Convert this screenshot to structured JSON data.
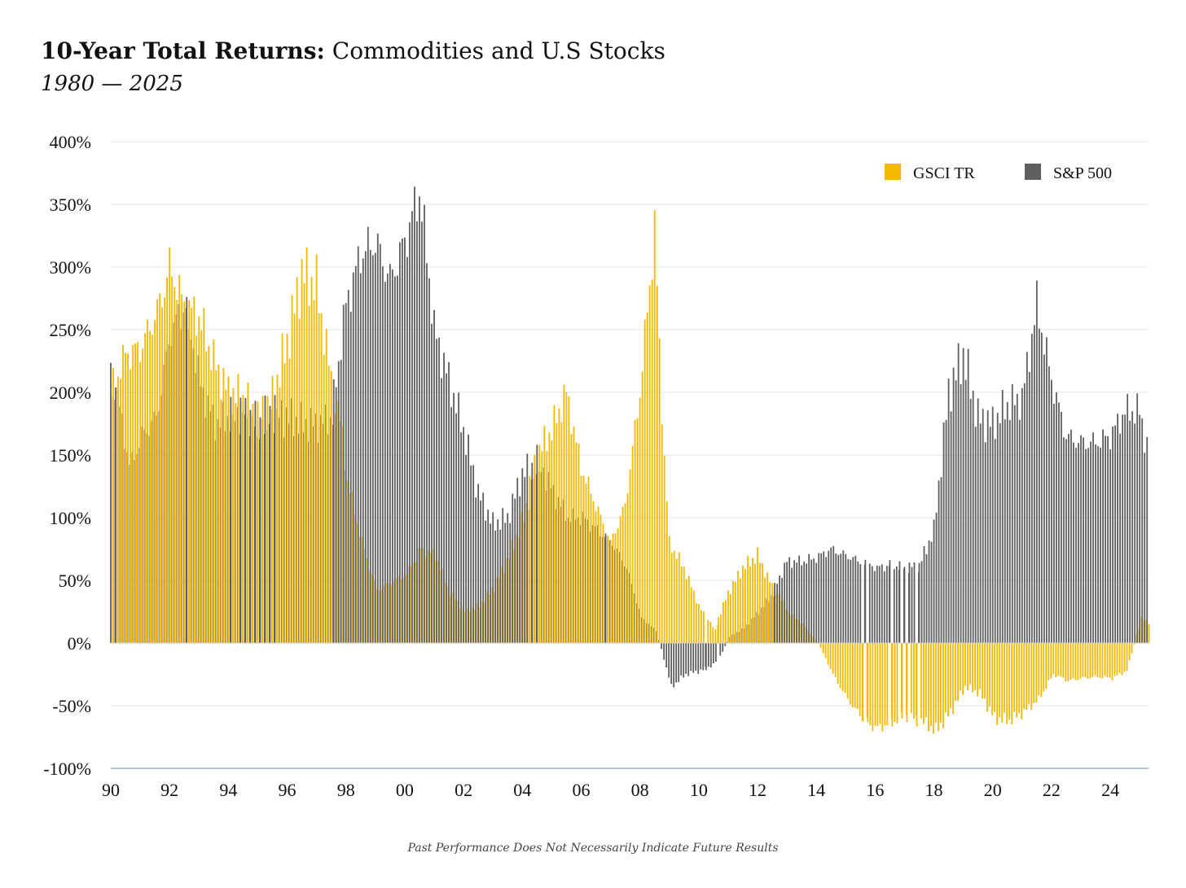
{
  "header": {
    "title_bold": "10-Year Total Returns:",
    "title_rest": " Commodities and U.S Stocks",
    "subtitle": "1980 — 2025"
  },
  "footnote": "Past Performance Does Not Necessarily Indicate Future Results",
  "colors": {
    "gsci": "#F5B800",
    "sp500": "#5f5f5f",
    "grid": "#e6e6e6",
    "baseline": "#9bb0d6"
  },
  "chart_data": {
    "type": "bar",
    "title": "10-Year Total Returns: Commodities and U.S Stocks",
    "subtitle": "1980 — 2025",
    "xlabel": "",
    "ylabel": "",
    "xlim": [
      1990,
      2025.3
    ],
    "ylim": [
      -100,
      400
    ],
    "y_ticks": [
      400,
      350,
      300,
      250,
      200,
      150,
      100,
      50,
      0,
      -50,
      -100
    ],
    "y_tick_labels": [
      "400%",
      "350%",
      "300%",
      "250%",
      "200%",
      "150%",
      "100%",
      "50%",
      "0%",
      "-50%",
      "-100%"
    ],
    "x_ticks": [
      1990,
      1992,
      1994,
      1996,
      1998,
      2000,
      2002,
      2004,
      2006,
      2008,
      2010,
      2012,
      2014,
      2016,
      2018,
      2020,
      2022,
      2024
    ],
    "x_tick_labels": [
      "90",
      "92",
      "94",
      "96",
      "98",
      "00",
      "02",
      "04",
      "06",
      "08",
      "10",
      "12",
      "14",
      "16",
      "18",
      "20",
      "22",
      "24"
    ],
    "grid": true,
    "legend": "top-right",
    "series": [
      {
        "name": "GSCI TR",
        "color": "#F5B800",
        "points": [
          [
            1990.0,
            200
          ],
          [
            1990.5,
            230
          ],
          [
            1991.0,
            235
          ],
          [
            1991.5,
            260
          ],
          [
            1991.8,
            280
          ],
          [
            1992.0,
            300
          ],
          [
            1992.5,
            270
          ],
          [
            1993.0,
            260
          ],
          [
            1993.5,
            225
          ],
          [
            1994.0,
            200
          ],
          [
            1994.5,
            195
          ],
          [
            1995.0,
            180
          ],
          [
            1995.5,
            195
          ],
          [
            1996.0,
            240
          ],
          [
            1996.5,
            295
          ],
          [
            1997.0,
            285
          ],
          [
            1997.5,
            210
          ],
          [
            1997.8,
            170
          ],
          [
            1998.0,
            130
          ],
          [
            1998.5,
            80
          ],
          [
            1999.0,
            42
          ],
          [
            2000.0,
            55
          ],
          [
            2000.5,
            75
          ],
          [
            2001.0,
            70
          ],
          [
            2001.5,
            40
          ],
          [
            2002.0,
            25
          ],
          [
            2002.5,
            30
          ],
          [
            2003.0,
            45
          ],
          [
            2003.5,
            70
          ],
          [
            2004.0,
            100
          ],
          [
            2004.5,
            150
          ],
          [
            2005.0,
            170
          ],
          [
            2005.5,
            200
          ],
          [
            2006.0,
            140
          ],
          [
            2006.5,
            110
          ],
          [
            2007.0,
            80
          ],
          [
            2007.5,
            110
          ],
          [
            2008.0,
            200
          ],
          [
            2008.5,
            330
          ],
          [
            2008.8,
            160
          ],
          [
            2009.0,
            80
          ],
          [
            2009.5,
            60
          ],
          [
            2010.0,
            30
          ],
          [
            2010.5,
            10
          ],
          [
            2011.0,
            40
          ],
          [
            2011.5,
            60
          ],
          [
            2012.0,
            70
          ],
          [
            2012.5,
            45
          ],
          [
            2013.0,
            25
          ],
          [
            2013.5,
            15
          ],
          [
            2014.0,
            0
          ],
          [
            2014.5,
            -25
          ],
          [
            2015.0,
            -45
          ],
          [
            2015.5,
            -60
          ],
          [
            2016.0,
            -68
          ],
          [
            2016.5,
            -65
          ],
          [
            2017.0,
            -58
          ],
          [
            2017.5,
            -62
          ],
          [
            2018.0,
            -70
          ],
          [
            2018.5,
            -55
          ],
          [
            2019.0,
            -35
          ],
          [
            2019.5,
            -40
          ],
          [
            2020.0,
            -60
          ],
          [
            2020.5,
            -62
          ],
          [
            2021.0,
            -55
          ],
          [
            2021.5,
            -45
          ],
          [
            2022.0,
            -25
          ],
          [
            2022.5,
            -30
          ],
          [
            2023.0,
            -28
          ],
          [
            2023.5,
            -27
          ],
          [
            2024.0,
            -28
          ],
          [
            2024.5,
            -22
          ],
          [
            2025.0,
            20
          ],
          [
            2025.3,
            15
          ]
        ]
      },
      {
        "name": "S&P 500",
        "color": "#5f5f5f",
        "points": [
          [
            1990.0,
            220
          ],
          [
            1990.3,
            180
          ],
          [
            1990.6,
            140
          ],
          [
            1991.0,
            165
          ],
          [
            1991.5,
            180
          ],
          [
            1992.0,
            250
          ],
          [
            1992.5,
            270
          ],
          [
            1993.0,
            205
          ],
          [
            1993.5,
            175
          ],
          [
            1994.0,
            180
          ],
          [
            1994.5,
            185
          ],
          [
            1995.0,
            175
          ],
          [
            1995.5,
            185
          ],
          [
            1996.0,
            180
          ],
          [
            1996.5,
            175
          ],
          [
            1997.0,
            175
          ],
          [
            1997.5,
            180
          ],
          [
            1998.0,
            270
          ],
          [
            1998.5,
            310
          ],
          [
            1999.0,
            320
          ],
          [
            1999.5,
            290
          ],
          [
            2000.0,
            320
          ],
          [
            2000.5,
            360
          ],
          [
            2000.8,
            300
          ],
          [
            2001.0,
            250
          ],
          [
            2001.5,
            210
          ],
          [
            2002.0,
            170
          ],
          [
            2002.5,
            120
          ],
          [
            2003.0,
            95
          ],
          [
            2003.5,
            100
          ],
          [
            2004.0,
            135
          ],
          [
            2004.5,
            145
          ],
          [
            2005.0,
            120
          ],
          [
            2005.5,
            100
          ],
          [
            2006.0,
            100
          ],
          [
            2006.5,
            90
          ],
          [
            2007.0,
            80
          ],
          [
            2007.5,
            60
          ],
          [
            2008.0,
            20
          ],
          [
            2008.5,
            10
          ],
          [
            2009.0,
            -35
          ],
          [
            2009.5,
            -25
          ],
          [
            2010.0,
            -22
          ],
          [
            2010.5,
            -18
          ],
          [
            2011.0,
            5
          ],
          [
            2011.5,
            12
          ],
          [
            2012.0,
            25
          ],
          [
            2012.5,
            40
          ],
          [
            2013.0,
            65
          ],
          [
            2013.5,
            65
          ],
          [
            2014.0,
            68
          ],
          [
            2014.5,
            75
          ],
          [
            2015.0,
            70
          ],
          [
            2015.5,
            65
          ],
          [
            2016.0,
            60
          ],
          [
            2016.5,
            62
          ],
          [
            2017.0,
            60
          ],
          [
            2017.5,
            62
          ],
          [
            2018.0,
            90
          ],
          [
            2018.5,
            200
          ],
          [
            2019.0,
            230
          ],
          [
            2019.5,
            180
          ],
          [
            2020.0,
            175
          ],
          [
            2020.5,
            190
          ],
          [
            2021.0,
            195
          ],
          [
            2021.5,
            270
          ],
          [
            2022.0,
            210
          ],
          [
            2022.5,
            165
          ],
          [
            2023.0,
            160
          ],
          [
            2023.5,
            160
          ],
          [
            2024.0,
            165
          ],
          [
            2024.5,
            185
          ],
          [
            2025.0,
            185
          ],
          [
            2025.3,
            150
          ]
        ]
      }
    ]
  }
}
